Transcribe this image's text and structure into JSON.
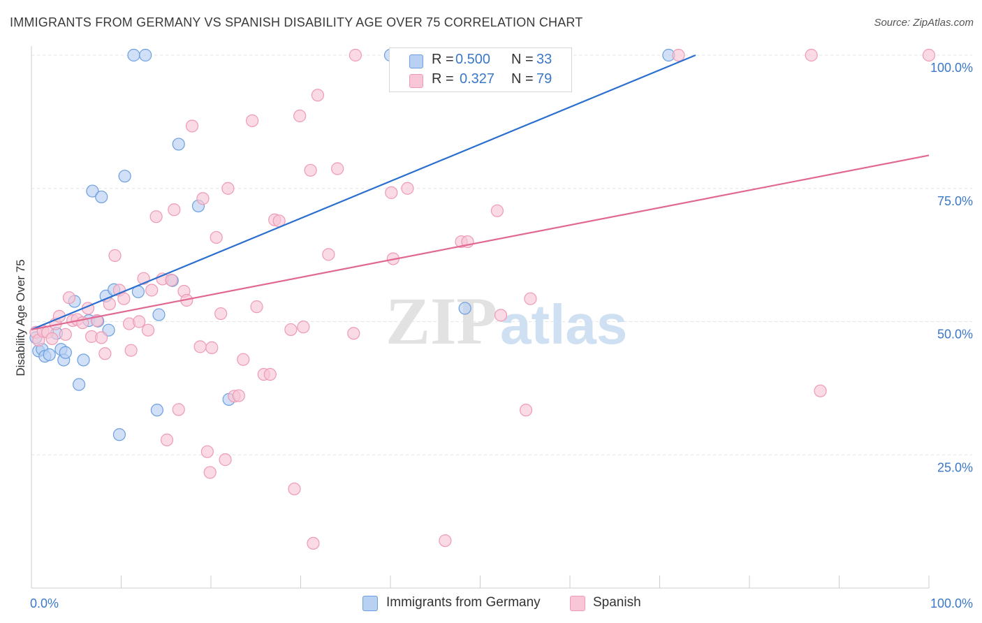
{
  "title": "IMMIGRANTS FROM GERMANY VS SPANISH DISABILITY AGE OVER 75 CORRELATION CHART",
  "source": "Source: ZipAtlas.com",
  "watermark": {
    "zip": "ZIP",
    "atlas": "atlas"
  },
  "legend": {
    "r_label": "R =",
    "n_label": "N =",
    "series": [
      {
        "name": "Immigrants from Germany",
        "r": "0.500",
        "n": "33",
        "color": "#6a9fe0",
        "fill": "#b8d0f2",
        "line": "#2a6fcf"
      },
      {
        "name": "Spanish",
        "r": "0.327",
        "n": "79",
        "color": "#ee9ab5",
        "fill": "#f8c6d6",
        "line": "#e06892"
      }
    ]
  },
  "chart_data": {
    "type": "scatter",
    "title": "IMMIGRANTS FROM GERMANY VS SPANISH DISABILITY AGE OVER 75 CORRELATION CHART",
    "xlabel": "",
    "ylabel": "Disability Age Over 75",
    "xlim": [
      0,
      100
    ],
    "ylim": [
      0,
      100
    ],
    "x_tick_labels": [
      "0.0%",
      "100.0%"
    ],
    "y_tick_labels": [
      "25.0%",
      "50.0%",
      "75.0%",
      "100.0%"
    ],
    "y_ticks": [
      25,
      50,
      75,
      100
    ],
    "grid": true,
    "series": [
      {
        "name": "Immigrants from Germany",
        "regression": {
          "x0": 0,
          "y0": 48.5,
          "x1": 74,
          "y1": 100
        },
        "points": [
          [
            0.5,
            47
          ],
          [
            0.8,
            44.5
          ],
          [
            1.2,
            44.8
          ],
          [
            1.5,
            43.5
          ],
          [
            2,
            43.8
          ],
          [
            2.8,
            47.8
          ],
          [
            3.3,
            44.8
          ],
          [
            3.6,
            42.8
          ],
          [
            3.8,
            44.2
          ],
          [
            4.8,
            53.8
          ],
          [
            5.3,
            38.2
          ],
          [
            5.8,
            42.8
          ],
          [
            6.4,
            50.2
          ],
          [
            6.8,
            74.5
          ],
          [
            7.4,
            50.1
          ],
          [
            7.8,
            73.4
          ],
          [
            8.3,
            54.8
          ],
          [
            8.6,
            48.4
          ],
          [
            9.2,
            56
          ],
          [
            9.8,
            28.8
          ],
          [
            10.4,
            77.3
          ],
          [
            11.9,
            55.6
          ],
          [
            14,
            33.4
          ],
          [
            14.2,
            51.3
          ],
          [
            15.7,
            57.7
          ],
          [
            16.4,
            83.3
          ],
          [
            18.6,
            71.7
          ],
          [
            22,
            35.4
          ],
          [
            11.4,
            100
          ],
          [
            12.7,
            100
          ],
          [
            40,
            100
          ],
          [
            71,
            100
          ],
          [
            48.3,
            52.5
          ]
        ]
      },
      {
        "name": "Spanish",
        "regression": {
          "x0": 0,
          "y0": 48.5,
          "x1": 100,
          "y1": 81.2
        },
        "points": [
          [
            0.5,
            48
          ],
          [
            0.8,
            46.5
          ],
          [
            1.3,
            48.2
          ],
          [
            1.8,
            48
          ],
          [
            2.3,
            46.8
          ],
          [
            2.7,
            49.6
          ],
          [
            3.1,
            51
          ],
          [
            3.8,
            47.6
          ],
          [
            4.2,
            54.5
          ],
          [
            4.6,
            50.2
          ],
          [
            5.1,
            50.4
          ],
          [
            5.7,
            49.8
          ],
          [
            6.3,
            52.5
          ],
          [
            6.7,
            47.2
          ],
          [
            7.3,
            50.2
          ],
          [
            7.8,
            47
          ],
          [
            8.2,
            44
          ],
          [
            8.7,
            53.3
          ],
          [
            9.3,
            62.4
          ],
          [
            9.8,
            55.9
          ],
          [
            10.3,
            54.3
          ],
          [
            10.9,
            49.6
          ],
          [
            11.1,
            44.6
          ],
          [
            12,
            50
          ],
          [
            12.5,
            58.1
          ],
          [
            13,
            48.4
          ],
          [
            13.4,
            55.9
          ],
          [
            13.9,
            69.7
          ],
          [
            14.6,
            58
          ],
          [
            15.1,
            27.8
          ],
          [
            15.6,
            57.8
          ],
          [
            15.9,
            71
          ],
          [
            16.4,
            33.5
          ],
          [
            17,
            55.7
          ],
          [
            17.3,
            54
          ],
          [
            17.9,
            86.7
          ],
          [
            18.8,
            45.3
          ],
          [
            19.1,
            73.1
          ],
          [
            19.6,
            25.6
          ],
          [
            19.9,
            21.7
          ],
          [
            20.6,
            65.8
          ],
          [
            21.1,
            51.5
          ],
          [
            21.6,
            24.1
          ],
          [
            21.9,
            75
          ],
          [
            22.6,
            36
          ],
          [
            23.1,
            36.1
          ],
          [
            23.6,
            42.9
          ],
          [
            24.6,
            87.7
          ],
          [
            25.1,
            52.8
          ],
          [
            25.9,
            40.1
          ],
          [
            26.6,
            40.1
          ],
          [
            27.1,
            69.1
          ],
          [
            27.6,
            68.9
          ],
          [
            28.9,
            48.5
          ],
          [
            29.3,
            18.6
          ],
          [
            29.9,
            88.6
          ],
          [
            30.3,
            49
          ],
          [
            31.1,
            78.4
          ],
          [
            31.4,
            8.4
          ],
          [
            31.9,
            92.5
          ],
          [
            33.1,
            62.6
          ],
          [
            34.1,
            78.7
          ],
          [
            35.9,
            47.8
          ],
          [
            36.1,
            100
          ],
          [
            40.3,
            61.8
          ],
          [
            40.1,
            74.2
          ],
          [
            41.9,
            75
          ],
          [
            46.1,
            8.9
          ],
          [
            47.9,
            65
          ],
          [
            48.6,
            65
          ],
          [
            51.9,
            70.8
          ],
          [
            52.3,
            51.2
          ],
          [
            55.1,
            33.4
          ],
          [
            55.6,
            54.3
          ],
          [
            72.1,
            100
          ],
          [
            86.9,
            100
          ],
          [
            87.9,
            37
          ],
          [
            100,
            100
          ],
          [
            20.1,
            45.1
          ]
        ]
      }
    ]
  }
}
